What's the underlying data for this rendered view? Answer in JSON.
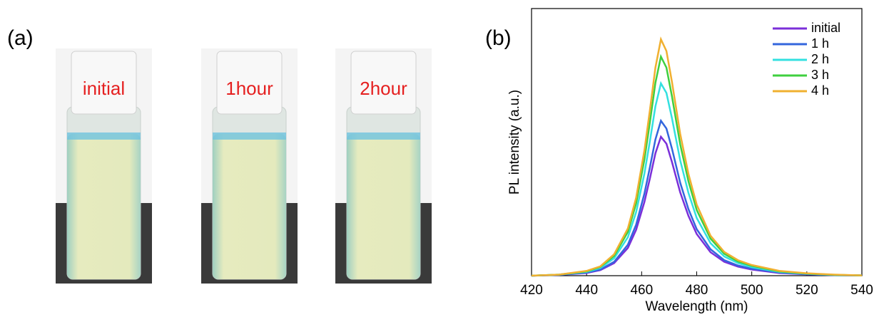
{
  "panel_labels": [
    "(a)",
    "(b)"
  ],
  "vials": [
    "initial",
    "1hour",
    "2hour"
  ],
  "chart_data": {
    "type": "line",
    "xlabel": "Wavelength (nm)",
    "ylabel": "PL intensity (a.u.)",
    "x": [
      420,
      430,
      440,
      445,
      450,
      455,
      458,
      461,
      463,
      465,
      467,
      469,
      471,
      474,
      477,
      480,
      485,
      490,
      495,
      500,
      510,
      520,
      530,
      540
    ],
    "xlim": [
      420,
      540
    ],
    "xticks": [
      420,
      440,
      460,
      480,
      500,
      520,
      540
    ],
    "ylim": [
      0,
      1
    ],
    "legend": "upper right",
    "series": [
      {
        "name": "initial",
        "color": "#7b2fd9",
        "values": [
          0,
          0.003,
          0.01,
          0.021,
          0.047,
          0.104,
          0.172,
          0.276,
          0.364,
          0.458,
          0.52,
          0.494,
          0.426,
          0.312,
          0.224,
          0.156,
          0.088,
          0.052,
          0.034,
          0.023,
          0.01,
          0.005,
          0.002,
          0.001
        ]
      },
      {
        "name": "1 h",
        "color": "#3366dd",
        "values": [
          0,
          0.003,
          0.012,
          0.023,
          0.052,
          0.116,
          0.191,
          0.307,
          0.406,
          0.51,
          0.58,
          0.551,
          0.476,
          0.348,
          0.249,
          0.174,
          0.099,
          0.058,
          0.038,
          0.026,
          0.012,
          0.006,
          0.002,
          0.001
        ]
      },
      {
        "name": "2 h",
        "color": "#33e0e0",
        "values": [
          0,
          0.004,
          0.014,
          0.029,
          0.065,
          0.144,
          0.238,
          0.382,
          0.504,
          0.634,
          0.72,
          0.684,
          0.59,
          0.432,
          0.31,
          0.216,
          0.122,
          0.072,
          0.047,
          0.032,
          0.014,
          0.007,
          0.003,
          0.001
        ]
      },
      {
        "name": "3 h",
        "color": "#3fcf3f",
        "values": [
          0,
          0.004,
          0.016,
          0.033,
          0.074,
          0.164,
          0.271,
          0.435,
          0.574,
          0.722,
          0.82,
          0.779,
          0.672,
          0.492,
          0.353,
          0.246,
          0.139,
          0.082,
          0.053,
          0.037,
          0.016,
          0.008,
          0.003,
          0.001
        ]
      },
      {
        "name": "4 h",
        "color": "#f0b030",
        "values": [
          0,
          0.004,
          0.018,
          0.035,
          0.08,
          0.177,
          0.292,
          0.469,
          0.62,
          0.779,
          0.885,
          0.841,
          0.726,
          0.531,
          0.381,
          0.266,
          0.15,
          0.089,
          0.058,
          0.04,
          0.018,
          0.009,
          0.004,
          0.001
        ]
      }
    ]
  }
}
